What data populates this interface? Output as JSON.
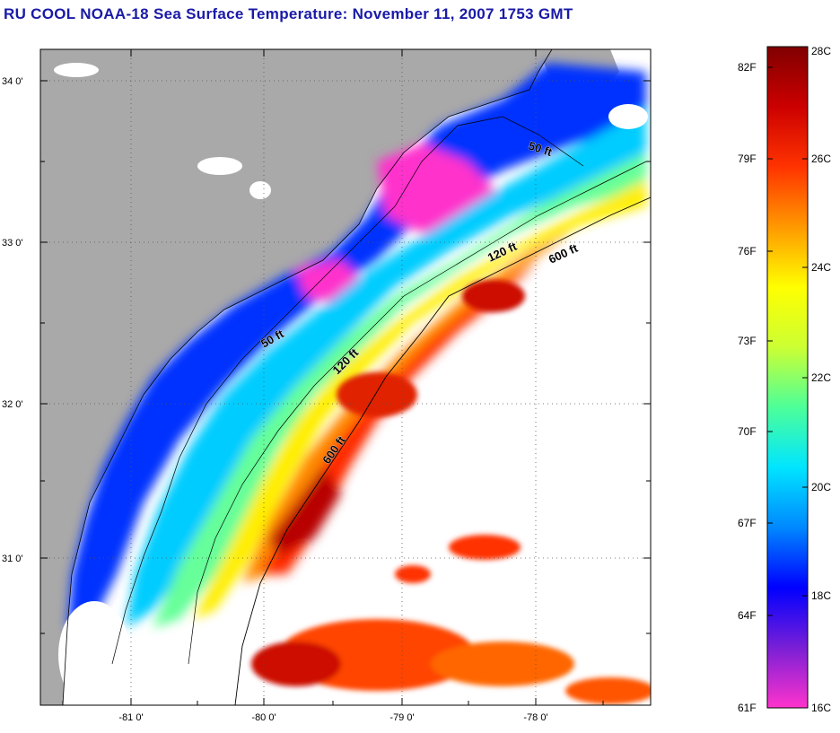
{
  "title": "RU COOL  NOAA-18  Sea Surface Temperature:  November 11, 2007 1753 GMT",
  "colors": {
    "title": "#1a1aa8",
    "land": "#a9a9a9",
    "no_data": "#ffffff",
    "coastline": "#000000"
  },
  "map": {
    "lat_labels": [
      "34 0'",
      "33 0'",
      "32 0'",
      "31 0'"
    ],
    "lon_labels": [
      "-81 0'",
      "-80 0'",
      "-79 0'",
      "-78 0'"
    ],
    "grid": "dotted",
    "bathymetry_labels": [
      {
        "name": "50 ft (north)",
        "text": "50 ft"
      },
      {
        "name": "120 ft (north)",
        "text": "120 ft"
      },
      {
        "name": "600 ft (north)",
        "text": "600 ft"
      },
      {
        "name": "50 ft (south)",
        "text": "50 ft"
      },
      {
        "name": "120 ft (south)",
        "text": "120 ft"
      },
      {
        "name": "600 ft (south)",
        "text": "600 ft"
      }
    ]
  },
  "colorbar": {
    "f_labels": [
      "82F",
      "79F",
      "76F",
      "73F",
      "70F",
      "67F",
      "64F",
      "61F"
    ],
    "c_labels": [
      "28C",
      "26C",
      "24C",
      "22C",
      "20C",
      "18C",
      "16C"
    ],
    "colormap": [
      "#ff33cc",
      "#7a1fd6",
      "#0000ff",
      "#0088ff",
      "#00e5ff",
      "#4dff99",
      "#ccff33",
      "#ffff00",
      "#ff9900",
      "#ff3300",
      "#cc0000",
      "#800000"
    ]
  }
}
